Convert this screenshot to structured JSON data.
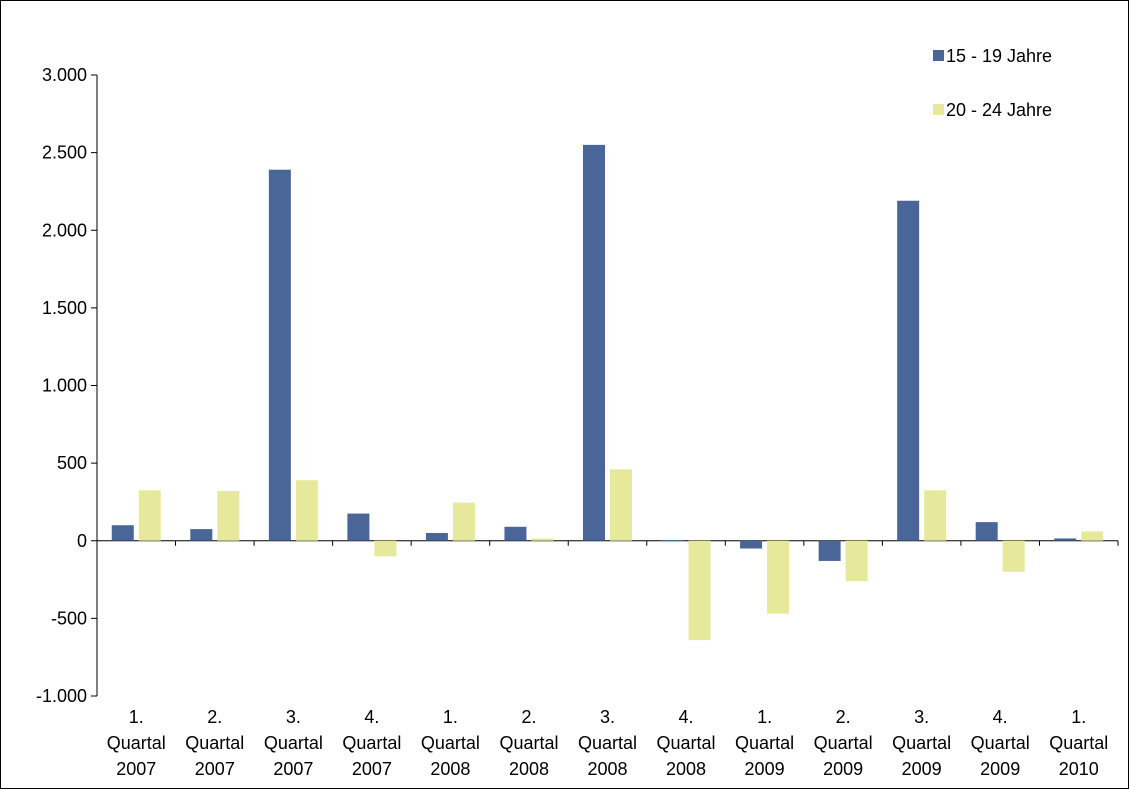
{
  "chart_data": {
    "type": "bar",
    "categories": [
      [
        "1.",
        "Quartal",
        "2007"
      ],
      [
        "2.",
        "Quartal",
        "2007"
      ],
      [
        "3.",
        "Quartal",
        "2007"
      ],
      [
        "4.",
        "Quartal",
        "2007"
      ],
      [
        "1.",
        "Quartal",
        "2008"
      ],
      [
        "2.",
        "Quartal",
        "2008"
      ],
      [
        "3.",
        "Quartal",
        "2008"
      ],
      [
        "4.",
        "Quartal",
        "2008"
      ],
      [
        "1.",
        "Quartal",
        "2009"
      ],
      [
        "2.",
        "Quartal",
        "2009"
      ],
      [
        "3.",
        "Quartal",
        "2009"
      ],
      [
        "4.",
        "Quartal",
        "2009"
      ],
      [
        "1.",
        "Quartal",
        "2010"
      ]
    ],
    "series": [
      {
        "name": "15 - 19 Jahre",
        "color": "#4A6699",
        "values": [
          100,
          75,
          2390,
          175,
          50,
          90,
          2550,
          5,
          -50,
          -130,
          2190,
          120,
          15
        ]
      },
      {
        "name": "20 - 24 Jahre",
        "color": "#E6E99B",
        "values": [
          325,
          320,
          390,
          -100,
          245,
          15,
          460,
          -640,
          -470,
          -260,
          325,
          -200,
          60
        ]
      }
    ],
    "yticks": [
      3000,
      2500,
      2000,
      1500,
      1000,
      500,
      0,
      -500,
      -1000
    ],
    "ytick_labels": [
      "3.000",
      "2.500",
      "2.000",
      "1.500",
      "1.000",
      "500",
      "0",
      "-500",
      "-1.000"
    ],
    "ylim": [
      -1000,
      3000
    ],
    "grid": false,
    "legend_position": "top-right",
    "title": "",
    "xlabel": "",
    "ylabel": ""
  }
}
